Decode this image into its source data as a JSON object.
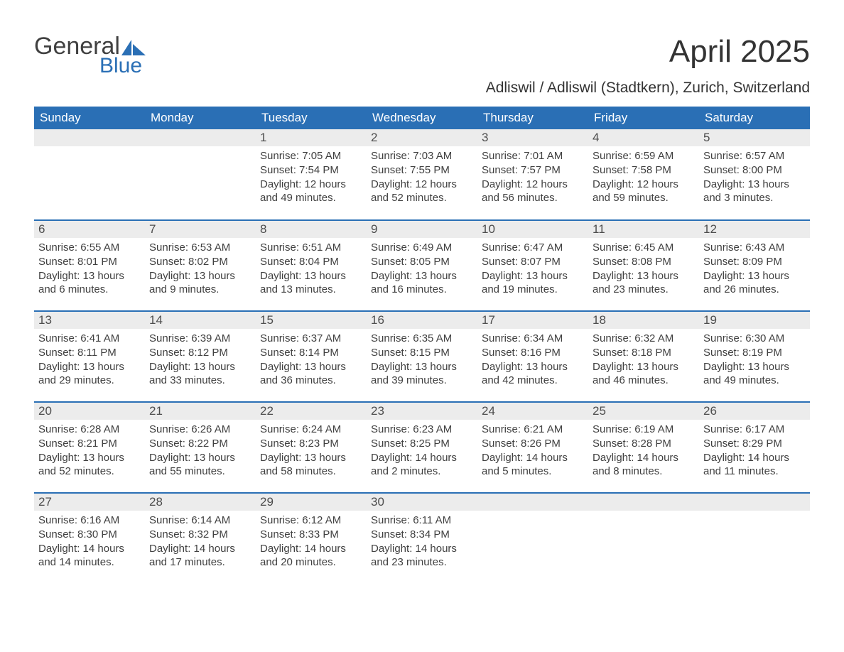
{
  "brand": {
    "word1": "General",
    "word2": "Blue",
    "accent_color": "#2a6fb5"
  },
  "title": "April 2025",
  "location": "Adliswil / Adliswil (Stadtkern), Zurich, Switzerland",
  "header_bg": "#2a6fb5",
  "daynum_bg": "#ececec",
  "columns": [
    "Sunday",
    "Monday",
    "Tuesday",
    "Wednesday",
    "Thursday",
    "Friday",
    "Saturday"
  ],
  "weeks": [
    [
      {
        "n": "",
        "lines": []
      },
      {
        "n": "",
        "lines": []
      },
      {
        "n": "1",
        "lines": [
          "Sunrise: 7:05 AM",
          "Sunset: 7:54 PM",
          "Daylight: 12 hours",
          "and 49 minutes."
        ]
      },
      {
        "n": "2",
        "lines": [
          "Sunrise: 7:03 AM",
          "Sunset: 7:55 PM",
          "Daylight: 12 hours",
          "and 52 minutes."
        ]
      },
      {
        "n": "3",
        "lines": [
          "Sunrise: 7:01 AM",
          "Sunset: 7:57 PM",
          "Daylight: 12 hours",
          "and 56 minutes."
        ]
      },
      {
        "n": "4",
        "lines": [
          "Sunrise: 6:59 AM",
          "Sunset: 7:58 PM",
          "Daylight: 12 hours",
          "and 59 minutes."
        ]
      },
      {
        "n": "5",
        "lines": [
          "Sunrise: 6:57 AM",
          "Sunset: 8:00 PM",
          "Daylight: 13 hours",
          "and 3 minutes."
        ]
      }
    ],
    [
      {
        "n": "6",
        "lines": [
          "Sunrise: 6:55 AM",
          "Sunset: 8:01 PM",
          "Daylight: 13 hours",
          "and 6 minutes."
        ]
      },
      {
        "n": "7",
        "lines": [
          "Sunrise: 6:53 AM",
          "Sunset: 8:02 PM",
          "Daylight: 13 hours",
          "and 9 minutes."
        ]
      },
      {
        "n": "8",
        "lines": [
          "Sunrise: 6:51 AM",
          "Sunset: 8:04 PM",
          "Daylight: 13 hours",
          "and 13 minutes."
        ]
      },
      {
        "n": "9",
        "lines": [
          "Sunrise: 6:49 AM",
          "Sunset: 8:05 PM",
          "Daylight: 13 hours",
          "and 16 minutes."
        ]
      },
      {
        "n": "10",
        "lines": [
          "Sunrise: 6:47 AM",
          "Sunset: 8:07 PM",
          "Daylight: 13 hours",
          "and 19 minutes."
        ]
      },
      {
        "n": "11",
        "lines": [
          "Sunrise: 6:45 AM",
          "Sunset: 8:08 PM",
          "Daylight: 13 hours",
          "and 23 minutes."
        ]
      },
      {
        "n": "12",
        "lines": [
          "Sunrise: 6:43 AM",
          "Sunset: 8:09 PM",
          "Daylight: 13 hours",
          "and 26 minutes."
        ]
      }
    ],
    [
      {
        "n": "13",
        "lines": [
          "Sunrise: 6:41 AM",
          "Sunset: 8:11 PM",
          "Daylight: 13 hours",
          "and 29 minutes."
        ]
      },
      {
        "n": "14",
        "lines": [
          "Sunrise: 6:39 AM",
          "Sunset: 8:12 PM",
          "Daylight: 13 hours",
          "and 33 minutes."
        ]
      },
      {
        "n": "15",
        "lines": [
          "Sunrise: 6:37 AM",
          "Sunset: 8:14 PM",
          "Daylight: 13 hours",
          "and 36 minutes."
        ]
      },
      {
        "n": "16",
        "lines": [
          "Sunrise: 6:35 AM",
          "Sunset: 8:15 PM",
          "Daylight: 13 hours",
          "and 39 minutes."
        ]
      },
      {
        "n": "17",
        "lines": [
          "Sunrise: 6:34 AM",
          "Sunset: 8:16 PM",
          "Daylight: 13 hours",
          "and 42 minutes."
        ]
      },
      {
        "n": "18",
        "lines": [
          "Sunrise: 6:32 AM",
          "Sunset: 8:18 PM",
          "Daylight: 13 hours",
          "and 46 minutes."
        ]
      },
      {
        "n": "19",
        "lines": [
          "Sunrise: 6:30 AM",
          "Sunset: 8:19 PM",
          "Daylight: 13 hours",
          "and 49 minutes."
        ]
      }
    ],
    [
      {
        "n": "20",
        "lines": [
          "Sunrise: 6:28 AM",
          "Sunset: 8:21 PM",
          "Daylight: 13 hours",
          "and 52 minutes."
        ]
      },
      {
        "n": "21",
        "lines": [
          "Sunrise: 6:26 AM",
          "Sunset: 8:22 PM",
          "Daylight: 13 hours",
          "and 55 minutes."
        ]
      },
      {
        "n": "22",
        "lines": [
          "Sunrise: 6:24 AM",
          "Sunset: 8:23 PM",
          "Daylight: 13 hours",
          "and 58 minutes."
        ]
      },
      {
        "n": "23",
        "lines": [
          "Sunrise: 6:23 AM",
          "Sunset: 8:25 PM",
          "Daylight: 14 hours",
          "and 2 minutes."
        ]
      },
      {
        "n": "24",
        "lines": [
          "Sunrise: 6:21 AM",
          "Sunset: 8:26 PM",
          "Daylight: 14 hours",
          "and 5 minutes."
        ]
      },
      {
        "n": "25",
        "lines": [
          "Sunrise: 6:19 AM",
          "Sunset: 8:28 PM",
          "Daylight: 14 hours",
          "and 8 minutes."
        ]
      },
      {
        "n": "26",
        "lines": [
          "Sunrise: 6:17 AM",
          "Sunset: 8:29 PM",
          "Daylight: 14 hours",
          "and 11 minutes."
        ]
      }
    ],
    [
      {
        "n": "27",
        "lines": [
          "Sunrise: 6:16 AM",
          "Sunset: 8:30 PM",
          "Daylight: 14 hours",
          "and 14 minutes."
        ]
      },
      {
        "n": "28",
        "lines": [
          "Sunrise: 6:14 AM",
          "Sunset: 8:32 PM",
          "Daylight: 14 hours",
          "and 17 minutes."
        ]
      },
      {
        "n": "29",
        "lines": [
          "Sunrise: 6:12 AM",
          "Sunset: 8:33 PM",
          "Daylight: 14 hours",
          "and 20 minutes."
        ]
      },
      {
        "n": "30",
        "lines": [
          "Sunrise: 6:11 AM",
          "Sunset: 8:34 PM",
          "Daylight: 14 hours",
          "and 23 minutes."
        ]
      },
      {
        "n": "",
        "lines": []
      },
      {
        "n": "",
        "lines": []
      },
      {
        "n": "",
        "lines": []
      }
    ]
  ]
}
